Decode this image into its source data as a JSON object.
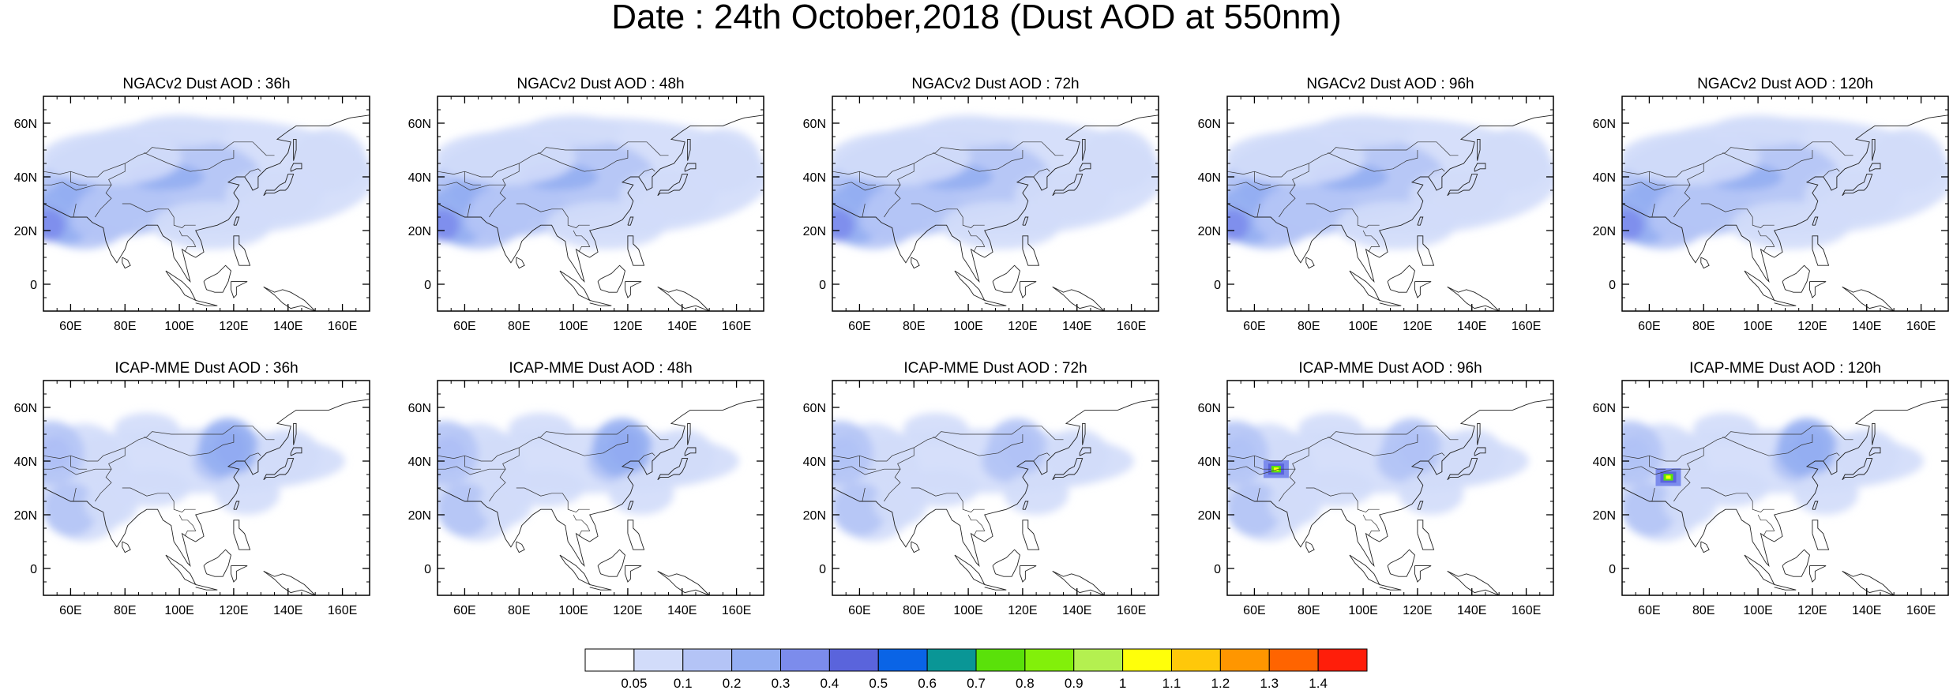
{
  "title": "Date : 24th October,2018 (Dust AOD at 550nm)",
  "panels": [
    {
      "title": "NGACv2 Dust AOD : 36h",
      "model": "ngac",
      "intensity": 1.0,
      "hotspot": null
    },
    {
      "title": "NGACv2 Dust AOD : 48h",
      "model": "ngac",
      "intensity": 1.0,
      "hotspot": null
    },
    {
      "title": "NGACv2 Dust AOD : 72h",
      "model": "ngac",
      "intensity": 0.95,
      "hotspot": null
    },
    {
      "title": "NGACv2 Dust AOD : 96h",
      "model": "ngac",
      "intensity": 0.9,
      "hotspot": null
    },
    {
      "title": "NGACv2 Dust AOD : 120h",
      "model": "ngac",
      "intensity": 0.9,
      "hotspot": null
    },
    {
      "title": "ICAP-MME Dust AOD : 36h",
      "model": "icap",
      "intensity": 1.0,
      "hotspot": null
    },
    {
      "title": "ICAP-MME Dust AOD : 48h",
      "model": "icap",
      "intensity": 0.9,
      "hotspot": null
    },
    {
      "title": "ICAP-MME Dust AOD : 72h",
      "model": "icap",
      "intensity": 0.8,
      "hotspot": null
    },
    {
      "title": "ICAP-MME Dust AOD : 96h",
      "model": "icap",
      "intensity": 0.8,
      "hotspot": [
        68,
        37
      ]
    },
    {
      "title": "ICAP-MME Dust AOD : 120h",
      "model": "icap",
      "intensity": 0.85,
      "hotspot": [
        67,
        34
      ]
    }
  ],
  "axes": {
    "lon_range": [
      50,
      170
    ],
    "lat_range": [
      -10,
      70
    ],
    "xticks": [
      60,
      80,
      100,
      120,
      140,
      160
    ],
    "xtick_labels": [
      "60E",
      "80E",
      "100E",
      "120E",
      "140E",
      "160E"
    ],
    "yticks": [
      0,
      20,
      40,
      60
    ],
    "ytick_labels": [
      "0",
      "20N",
      "40N",
      "60N"
    ]
  },
  "colorbar": {
    "labels": [
      "0.05",
      "0.1",
      "0.2",
      "0.3",
      "0.4",
      "0.5",
      "0.6",
      "0.7",
      "0.8",
      "0.9",
      "1",
      "1.1",
      "1.2",
      "1.3",
      "1.4"
    ],
    "colors": [
      "#ffffff",
      "#d2dcfa",
      "#b4c4f6",
      "#94aef2",
      "#7c8cec",
      "#5a64dc",
      "#0a64e6",
      "#0a9696",
      "#5ae10a",
      "#82f00a",
      "#b4f050",
      "#ffff0a",
      "#ffc80a",
      "#ff9600",
      "#ff6400",
      "#ff1e0a"
    ]
  }
}
